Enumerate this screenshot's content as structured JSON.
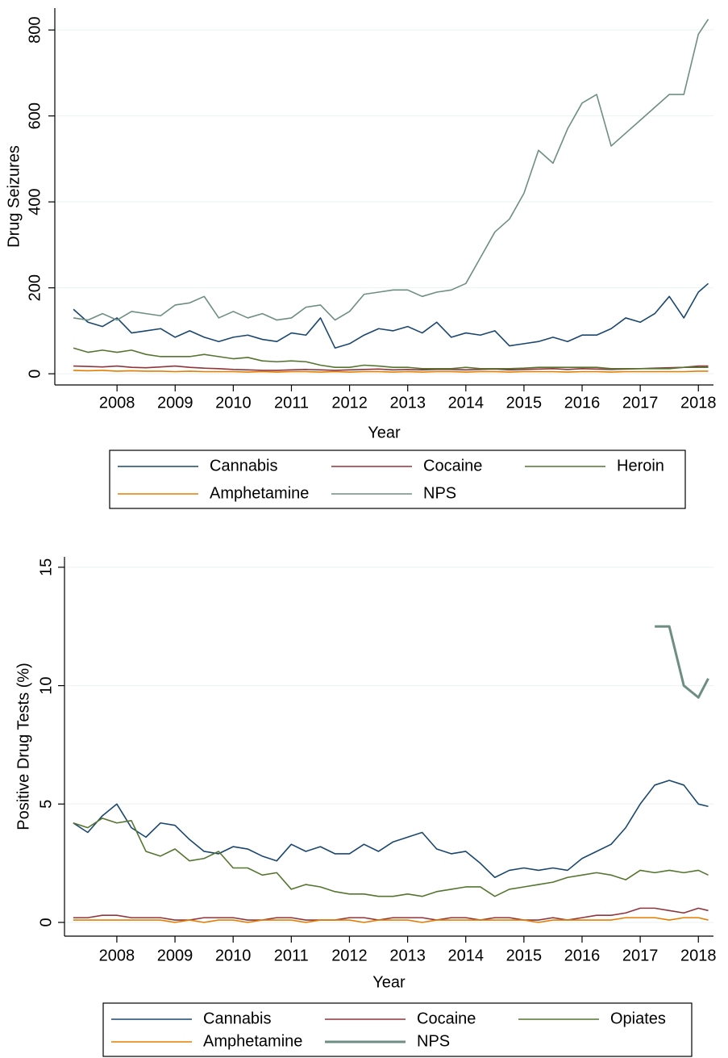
{
  "chart_data": [
    {
      "type": "line",
      "ylabel": "Drug Seizures",
      "xlabel": "Year",
      "xlim": [
        2006.93,
        2018.26
      ],
      "ylim": [
        -26,
        851
      ],
      "grid": true,
      "xticks": [
        2008,
        2009,
        2010,
        2011,
        2012,
        2013,
        2014,
        2015,
        2016,
        2017,
        2018
      ],
      "yticks": [
        0,
        200,
        400,
        600,
        800
      ],
      "x": [
        2007.25,
        2007.5,
        2007.75,
        2008,
        2008.25,
        2008.5,
        2008.75,
        2009,
        2009.25,
        2009.5,
        2009.75,
        2010,
        2010.25,
        2010.5,
        2010.75,
        2011,
        2011.25,
        2011.5,
        2011.75,
        2012,
        2012.25,
        2012.5,
        2012.75,
        2013,
        2013.25,
        2013.5,
        2013.75,
        2014,
        2014.25,
        2014.5,
        2014.75,
        2015,
        2015.25,
        2015.5,
        2015.75,
        2016,
        2016.25,
        2016.5,
        2016.75,
        2017,
        2017.25,
        2017.5,
        2017.75,
        2018,
        2018.17
      ],
      "series": [
        {
          "name": "Cannabis",
          "color": "#1a476f",
          "values": [
            150,
            120,
            110,
            130,
            95,
            100,
            105,
            85,
            100,
            85,
            75,
            85,
            90,
            80,
            75,
            95,
            90,
            130,
            60,
            70,
            90,
            105,
            100,
            110,
            95,
            120,
            85,
            95,
            90,
            100,
            65,
            70,
            75,
            85,
            75,
            90,
            90,
            105,
            130,
            120,
            140,
            180,
            130,
            190,
            210
          ]
        },
        {
          "name": "Cocaine",
          "color": "#90353b",
          "values": [
            18,
            17,
            16,
            18,
            15,
            14,
            16,
            18,
            15,
            13,
            12,
            10,
            9,
            8,
            8,
            9,
            10,
            9,
            8,
            9,
            10,
            11,
            9,
            10,
            9,
            10,
            10,
            9,
            10,
            11,
            9,
            10,
            11,
            12,
            10,
            12,
            11,
            10,
            11,
            12,
            13,
            14,
            15,
            18,
            18
          ]
        },
        {
          "name": "Heroin",
          "color": "#55752f",
          "values": [
            60,
            50,
            55,
            50,
            55,
            45,
            40,
            40,
            40,
            45,
            40,
            35,
            38,
            30,
            28,
            30,
            28,
            20,
            15,
            15,
            20,
            18,
            15,
            15,
            12,
            12,
            12,
            15,
            12,
            12,
            12,
            13,
            15,
            15,
            15,
            15,
            15,
            12,
            12,
            12,
            12,
            12,
            15,
            15,
            15
          ]
        },
        {
          "name": "Amphetamine",
          "color": "#e37e00",
          "values": [
            8,
            7,
            8,
            6,
            7,
            6,
            6,
            5,
            6,
            5,
            5,
            5,
            4,
            5,
            4,
            5,
            5,
            4,
            5,
            4,
            5,
            5,
            4,
            5,
            4,
            5,
            5,
            4,
            5,
            5,
            4,
            5,
            5,
            5,
            4,
            5,
            5,
            4,
            5,
            5,
            5,
            5,
            5,
            6,
            6
          ]
        },
        {
          "name": "NPS",
          "color": "#6e8e84",
          "values": [
            130,
            125,
            140,
            125,
            145,
            140,
            135,
            160,
            165,
            180,
            130,
            145,
            130,
            140,
            125,
            130,
            155,
            160,
            125,
            145,
            185,
            190,
            195,
            195,
            180,
            190,
            195,
            210,
            270,
            330,
            360,
            420,
            520,
            490,
            570,
            630,
            650,
            530,
            560,
            590,
            620,
            650,
            650,
            790,
            825
          ]
        }
      ]
    },
    {
      "type": "line",
      "ylabel": "Positive Drug Tests (%)",
      "xlabel": "Year",
      "xlim": [
        2007.1,
        2018.26
      ],
      "ylim": [
        -0.58,
        15.44
      ],
      "grid": true,
      "xticks": [
        2008,
        2009,
        2010,
        2011,
        2012,
        2013,
        2014,
        2015,
        2016,
        2017,
        2018
      ],
      "yticks": [
        0,
        5,
        10,
        15
      ],
      "x": [
        2007.25,
        2007.5,
        2007.75,
        2008,
        2008.25,
        2008.5,
        2008.75,
        2009,
        2009.25,
        2009.5,
        2009.75,
        2010,
        2010.25,
        2010.5,
        2010.75,
        2011,
        2011.25,
        2011.5,
        2011.75,
        2012,
        2012.25,
        2012.5,
        2012.75,
        2013,
        2013.25,
        2013.5,
        2013.75,
        2014,
        2014.25,
        2014.5,
        2014.75,
        2015,
        2015.25,
        2015.5,
        2015.75,
        2016,
        2016.25,
        2016.5,
        2016.75,
        2017,
        2017.25,
        2017.5,
        2017.75,
        2018,
        2018.17
      ],
      "series": [
        {
          "name": "Cannabis",
          "color": "#1a476f",
          "values": [
            4.2,
            3.8,
            4.5,
            5.0,
            4.0,
            3.6,
            4.2,
            4.1,
            3.5,
            3.0,
            2.9,
            3.2,
            3.1,
            2.8,
            2.6,
            3.3,
            3.0,
            3.2,
            2.9,
            2.9,
            3.3,
            3.0,
            3.4,
            3.6,
            3.8,
            3.1,
            2.9,
            3.0,
            2.5,
            1.9,
            2.2,
            2.3,
            2.2,
            2.3,
            2.2,
            2.7,
            3.0,
            3.3,
            4.0,
            5.0,
            5.8,
            6.0,
            5.8,
            5.0,
            4.9
          ]
        },
        {
          "name": "Cocaine",
          "color": "#90353b",
          "values": [
            0.2,
            0.2,
            0.3,
            0.3,
            0.2,
            0.2,
            0.2,
            0.1,
            0.1,
            0.2,
            0.2,
            0.2,
            0.1,
            0.1,
            0.2,
            0.2,
            0.1,
            0.1,
            0.1,
            0.2,
            0.2,
            0.1,
            0.2,
            0.2,
            0.2,
            0.1,
            0.2,
            0.2,
            0.1,
            0.2,
            0.2,
            0.1,
            0.1,
            0.2,
            0.1,
            0.2,
            0.3,
            0.3,
            0.4,
            0.6,
            0.6,
            0.5,
            0.4,
            0.6,
            0.5
          ]
        },
        {
          "name": "Opiates",
          "color": "#55752f",
          "values": [
            4.2,
            4.0,
            4.4,
            4.2,
            4.3,
            3.0,
            2.8,
            3.1,
            2.6,
            2.7,
            3.0,
            2.3,
            2.3,
            2.0,
            2.1,
            1.4,
            1.6,
            1.5,
            1.3,
            1.2,
            1.2,
            1.1,
            1.1,
            1.2,
            1.1,
            1.3,
            1.4,
            1.5,
            1.5,
            1.1,
            1.4,
            1.5,
            1.6,
            1.7,
            1.9,
            2.0,
            2.1,
            2.0,
            1.8,
            2.2,
            2.1,
            2.2,
            2.1,
            2.2,
            2.0
          ]
        },
        {
          "name": "Amphetamine",
          "color": "#e37e00",
          "values": [
            0.1,
            0.1,
            0.1,
            0.1,
            0.1,
            0.1,
            0.1,
            0.0,
            0.1,
            0.0,
            0.1,
            0.1,
            0.0,
            0.1,
            0.1,
            0.1,
            0.0,
            0.1,
            0.1,
            0.1,
            0.0,
            0.1,
            0.1,
            0.1,
            0.0,
            0.1,
            0.1,
            0.1,
            0.1,
            0.1,
            0.1,
            0.1,
            0.0,
            0.1,
            0.1,
            0.1,
            0.1,
            0.1,
            0.2,
            0.2,
            0.2,
            0.1,
            0.2,
            0.2,
            0.1
          ]
        },
        {
          "name": "NPS",
          "color": "#6e8e84",
          "width": 3,
          "values": [
            null,
            null,
            null,
            null,
            null,
            null,
            null,
            null,
            null,
            null,
            null,
            null,
            null,
            null,
            null,
            null,
            null,
            null,
            null,
            null,
            null,
            null,
            null,
            null,
            null,
            null,
            null,
            null,
            null,
            null,
            null,
            null,
            null,
            null,
            null,
            null,
            null,
            null,
            null,
            null,
            12.5,
            12.5,
            10.0,
            9.5,
            10.3
          ]
        }
      ]
    }
  ]
}
